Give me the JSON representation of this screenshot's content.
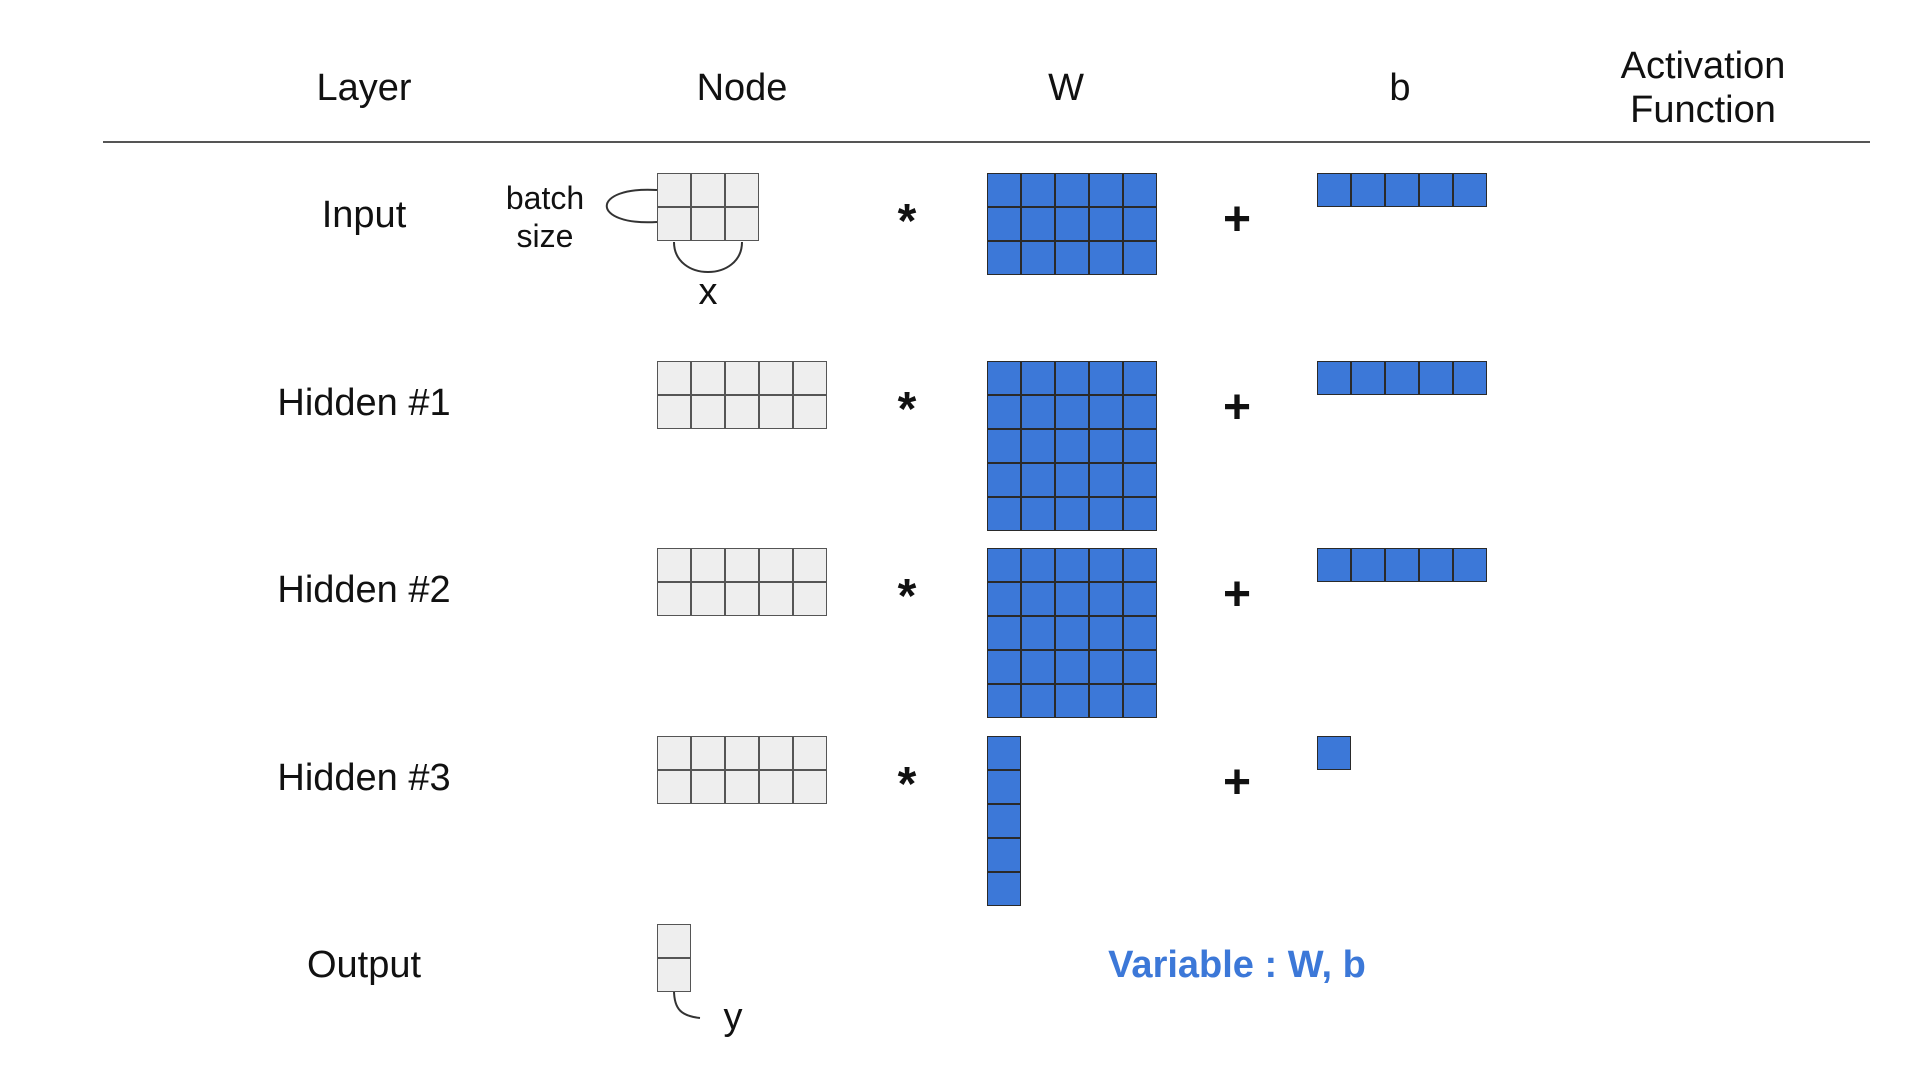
{
  "header": {
    "layer": "Layer",
    "node": "Node",
    "w": "W",
    "b": "b",
    "activation_line1": "Activation",
    "activation_line2": "Function"
  },
  "rows": [
    {
      "label": "Input",
      "node": {
        "rows": 2,
        "cols": 3
      },
      "operator": "*",
      "w": {
        "rows": 3,
        "cols": 5
      },
      "plus": "+",
      "b": {
        "rows": 1,
        "cols": 5
      }
    },
    {
      "label": "Hidden #1",
      "node": {
        "rows": 2,
        "cols": 5
      },
      "operator": "*",
      "w": {
        "rows": 5,
        "cols": 5
      },
      "plus": "+",
      "b": {
        "rows": 1,
        "cols": 5
      }
    },
    {
      "label": "Hidden #2",
      "node": {
        "rows": 2,
        "cols": 5
      },
      "operator": "*",
      "w": {
        "rows": 5,
        "cols": 5
      },
      "plus": "+",
      "b": {
        "rows": 1,
        "cols": 5
      }
    },
    {
      "label": "Hidden #3",
      "node": {
        "rows": 2,
        "cols": 5
      },
      "operator": "*",
      "w": {
        "rows": 5,
        "cols": 1
      },
      "plus": "+",
      "b": {
        "rows": 1,
        "cols": 1
      }
    },
    {
      "label": "Output",
      "node": {
        "rows": 2,
        "cols": 1
      }
    }
  ],
  "annotations": {
    "batch_line1": "batch",
    "batch_line2": "size",
    "x": "x",
    "y": "y"
  },
  "legend": "Variable : W, b",
  "colors": {
    "variable": "#3c78d8",
    "node": "#eeeeee",
    "rule": "#555555"
  }
}
